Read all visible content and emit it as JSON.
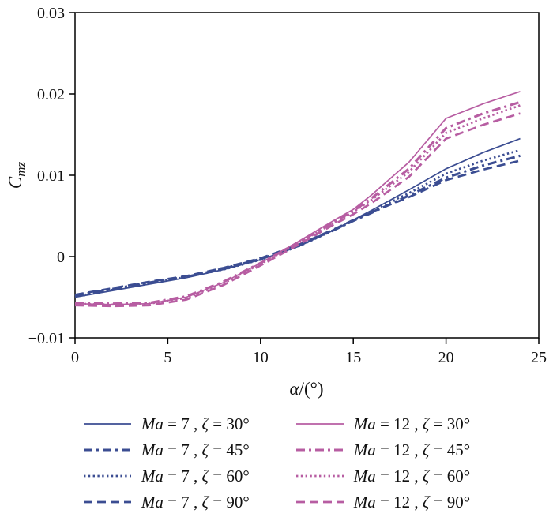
{
  "figure": {
    "background": "#ffffff"
  },
  "chart_data": {
    "type": "line",
    "title": "",
    "xlabel_parts": {
      "italic": "α",
      "rest": "/(°)"
    },
    "ylabel_parts": {
      "main": "C",
      "sub": "mz"
    },
    "xlim": [
      0,
      25
    ],
    "ylim": [
      -0.01,
      0.03
    ],
    "x_ticks": [
      0,
      5,
      10,
      15,
      20,
      25
    ],
    "x_tick_labels": [
      "0",
      "5",
      "10",
      "15",
      "20",
      "25"
    ],
    "y_ticks": [
      -0.01,
      0,
      0.01,
      0.02,
      0.03
    ],
    "y_tick_labels": [
      "−0.01",
      "0",
      "0.01",
      "0.02",
      "0.03"
    ],
    "grid": false,
    "legend_position": "below",
    "colors": {
      "ma7": "#3b4d92",
      "ma12": "#b75da2"
    },
    "x": [
      0,
      2,
      4,
      6,
      8,
      10,
      12,
      14,
      15,
      16,
      18,
      20,
      22,
      24
    ],
    "series": [
      {
        "id": "ma7-zeta30",
        "name": "Ma=7, ζ=30°",
        "color_key": "ma7",
        "style": "solid",
        "y": [
          -0.005,
          -0.0042,
          -0.0034,
          -0.0026,
          -0.0016,
          -0.0004,
          0.0012,
          0.0033,
          0.0045,
          0.0057,
          0.0082,
          0.0108,
          0.0128,
          0.0145
        ]
      },
      {
        "id": "ma7-zeta45",
        "name": "Ma=7, ζ=45°",
        "color_key": "ma7",
        "style": "dashdot",
        "y": [
          -0.0048,
          -0.004,
          -0.0032,
          -0.0025,
          -0.0015,
          -0.0003,
          0.0013,
          0.0033,
          0.0044,
          0.0054,
          0.0075,
          0.0097,
          0.0112,
          0.0124
        ]
      },
      {
        "id": "ma7-zeta60",
        "name": "Ma=7, ζ=60°",
        "color_key": "ma7",
        "style": "dotted",
        "y": [
          -0.0049,
          -0.0041,
          -0.0033,
          -0.0025,
          -0.0016,
          -0.0004,
          0.0012,
          0.0033,
          0.0044,
          0.0056,
          0.0078,
          0.0102,
          0.0118,
          0.0131
        ]
      },
      {
        "id": "ma7-zeta90",
        "name": "Ma=7, ζ=90°",
        "color_key": "ma7",
        "style": "dashed",
        "y": [
          -0.0047,
          -0.0039,
          -0.0031,
          -0.0024,
          -0.0014,
          -0.0002,
          0.0014,
          0.0034,
          0.0045,
          0.0055,
          0.0073,
          0.0094,
          0.0107,
          0.0118
        ]
      },
      {
        "id": "ma12-zeta30",
        "name": "Ma=12, ζ=30°",
        "color_key": "ma12",
        "style": "solid",
        "y": [
          -0.0058,
          -0.0059,
          -0.0058,
          -0.005,
          -0.0032,
          -0.0008,
          0.0018,
          0.0045,
          0.0058,
          0.0076,
          0.0116,
          0.017,
          0.0188,
          0.0203
        ]
      },
      {
        "id": "ma12-zeta45",
        "name": "Ma=12, ζ=45°",
        "color_key": "ma12",
        "style": "dashdot",
        "y": [
          -0.0057,
          -0.0058,
          -0.0057,
          -0.0049,
          -0.0031,
          -0.0008,
          0.0017,
          0.0043,
          0.0056,
          0.0072,
          0.0108,
          0.0158,
          0.0176,
          0.019
        ]
      },
      {
        "id": "ma12-zeta60",
        "name": "Ma=12, ζ=60°",
        "color_key": "ma12",
        "style": "dotted",
        "y": [
          -0.0058,
          -0.0059,
          -0.0058,
          -0.0051,
          -0.0033,
          -0.0009,
          0.0016,
          0.0042,
          0.0055,
          0.007,
          0.0104,
          0.0152,
          0.017,
          0.0186
        ]
      },
      {
        "id": "ma12-zeta90",
        "name": "Ma=12, ζ=90°",
        "color_key": "ma12",
        "style": "dashed",
        "y": [
          -0.006,
          -0.0061,
          -0.006,
          -0.0053,
          -0.0035,
          -0.0011,
          0.0014,
          0.004,
          0.0052,
          0.0066,
          0.0098,
          0.0145,
          0.0162,
          0.0176
        ]
      }
    ]
  },
  "legend": {
    "items": [
      {
        "id": "ma7-zeta30",
        "series_index": 0,
        "ma_italic": "Ma",
        "ma_rest": " = 7 , ",
        "zeta_italic": "ζ",
        "zeta_rest": " = 30°"
      },
      {
        "id": "ma12-zeta30",
        "series_index": 4,
        "ma_italic": "Ma",
        "ma_rest": " = 12 , ",
        "zeta_italic": "ζ",
        "zeta_rest": " = 30°"
      },
      {
        "id": "ma7-zeta45",
        "series_index": 1,
        "ma_italic": "Ma",
        "ma_rest": " = 7 , ",
        "zeta_italic": "ζ",
        "zeta_rest": " = 45°"
      },
      {
        "id": "ma12-zeta45",
        "series_index": 5,
        "ma_italic": "Ma",
        "ma_rest": " = 12 , ",
        "zeta_italic": "ζ",
        "zeta_rest": " = 45°"
      },
      {
        "id": "ma7-zeta60",
        "series_index": 2,
        "ma_italic": "Ma",
        "ma_rest": " = 7 , ",
        "zeta_italic": "ζ",
        "zeta_rest": " = 60°"
      },
      {
        "id": "ma12-zeta60",
        "series_index": 6,
        "ma_italic": "Ma",
        "ma_rest": " = 12 , ",
        "zeta_italic": "ζ",
        "zeta_rest": " = 60°"
      },
      {
        "id": "ma7-zeta90",
        "series_index": 3,
        "ma_italic": "Ma",
        "ma_rest": " = 7 , ",
        "zeta_italic": "ζ",
        "zeta_rest": " = 90°"
      },
      {
        "id": "ma12-zeta90",
        "series_index": 7,
        "ma_italic": "Ma",
        "ma_rest": " = 12 , ",
        "zeta_italic": "ζ",
        "zeta_rest": " = 90°"
      }
    ]
  }
}
